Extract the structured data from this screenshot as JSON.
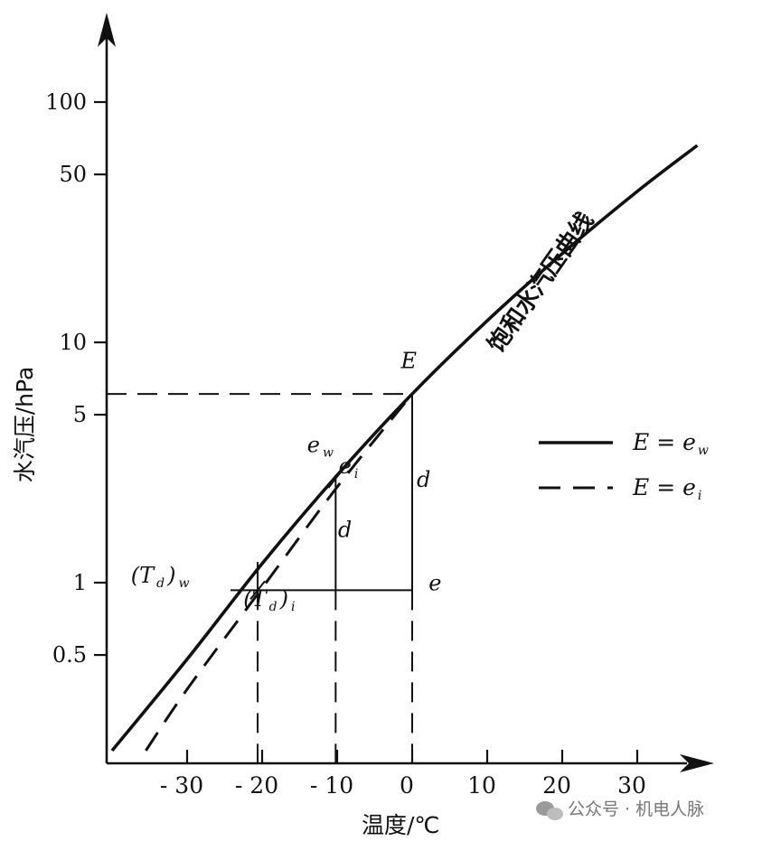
{
  "chart_data": {
    "type": "line",
    "title": "",
    "xlabel": "温度/℃",
    "ylabel": "水汽压/hPa",
    "y_scale": "log",
    "xlim": [
      -40,
      40
    ],
    "ylim": [
      0.2,
      200
    ],
    "grid": false,
    "x_ticks": [
      {
        "value": -30,
        "label": "- 30"
      },
      {
        "value": -20,
        "label": "- 20"
      },
      {
        "value": -10,
        "label": "- 10"
      },
      {
        "value": 0,
        "label": "0"
      },
      {
        "value": 10,
        "label": "10"
      },
      {
        "value": 20,
        "label": "20"
      },
      {
        "value": 30,
        "label": "30"
      }
    ],
    "y_ticks": [
      {
        "value": 0.5,
        "label": "0.5"
      },
      {
        "value": 1,
        "label": "1"
      },
      {
        "value": 5,
        "label": "5"
      },
      {
        "value": 10,
        "label": "10"
      },
      {
        "value": 50,
        "label": "50"
      },
      {
        "value": 100,
        "label": "100"
      }
    ],
    "series": [
      {
        "name": "E = e_w",
        "style": "solid",
        "x": [
          -40,
          -30,
          -20,
          -10,
          0,
          10,
          20,
          30,
          38
        ],
        "y": [
          0.2,
          0.48,
          1.2,
          2.8,
          6.1,
          12.3,
          23.4,
          42.5,
          66
        ]
      },
      {
        "name": "E = e_i",
        "style": "dashed",
        "x": [
          -35.5,
          -30,
          -20,
          -10,
          0
        ],
        "y": [
          0.2,
          0.36,
          0.95,
          2.5,
          6.1
        ]
      }
    ],
    "curve_label": "饱和水汽压曲线",
    "annotations": {
      "E": {
        "text": "E",
        "x": -1.5,
        "y": 7.8
      },
      "e_w": {
        "text": "e",
        "sub": "w",
        "x": -14,
        "y": 3.5
      },
      "e_i": {
        "text": "e",
        "sub": "i",
        "x": -9.8,
        "y": 2.85
      },
      "d_upper": {
        "text": "d",
        "x": 0.6,
        "y": 2.5
      },
      "d_lower": {
        "text": "d",
        "x": -9.9,
        "y": 1.55
      },
      "e_right": {
        "text": "e",
        "x": 2.2,
        "y": 0.93
      },
      "td_w": {
        "text": "(T",
        "sub": "d",
        "tail": ")",
        "tail_sub": "w",
        "x": -37.5,
        "y": 1.0
      },
      "td_i": {
        "text": "(T",
        "sub": "d",
        "tail": ")",
        "tail_sub": "i",
        "x": -22.5,
        "y": 0.8
      }
    },
    "guides": {
      "E_value": 6.1,
      "e_value": 0.93,
      "ew_temp": -10.2,
      "ei_temp": -10.2,
      "td_w_temp": -20.6,
      "td_i_temp": -20.6,
      "td_w_value": 1.22,
      "td_i_value": 0.93
    },
    "legend": {
      "position": "right",
      "entries": [
        {
          "style": "solid",
          "lhs": "E",
          "rhs": "e",
          "rhs_sub": "w"
        },
        {
          "style": "dashed",
          "lhs": "E",
          "rhs": "e",
          "rhs_sub": "i"
        }
      ]
    }
  },
  "watermark": {
    "text": "公众号 · 机电人脉",
    "icon": "wechat-icon"
  }
}
